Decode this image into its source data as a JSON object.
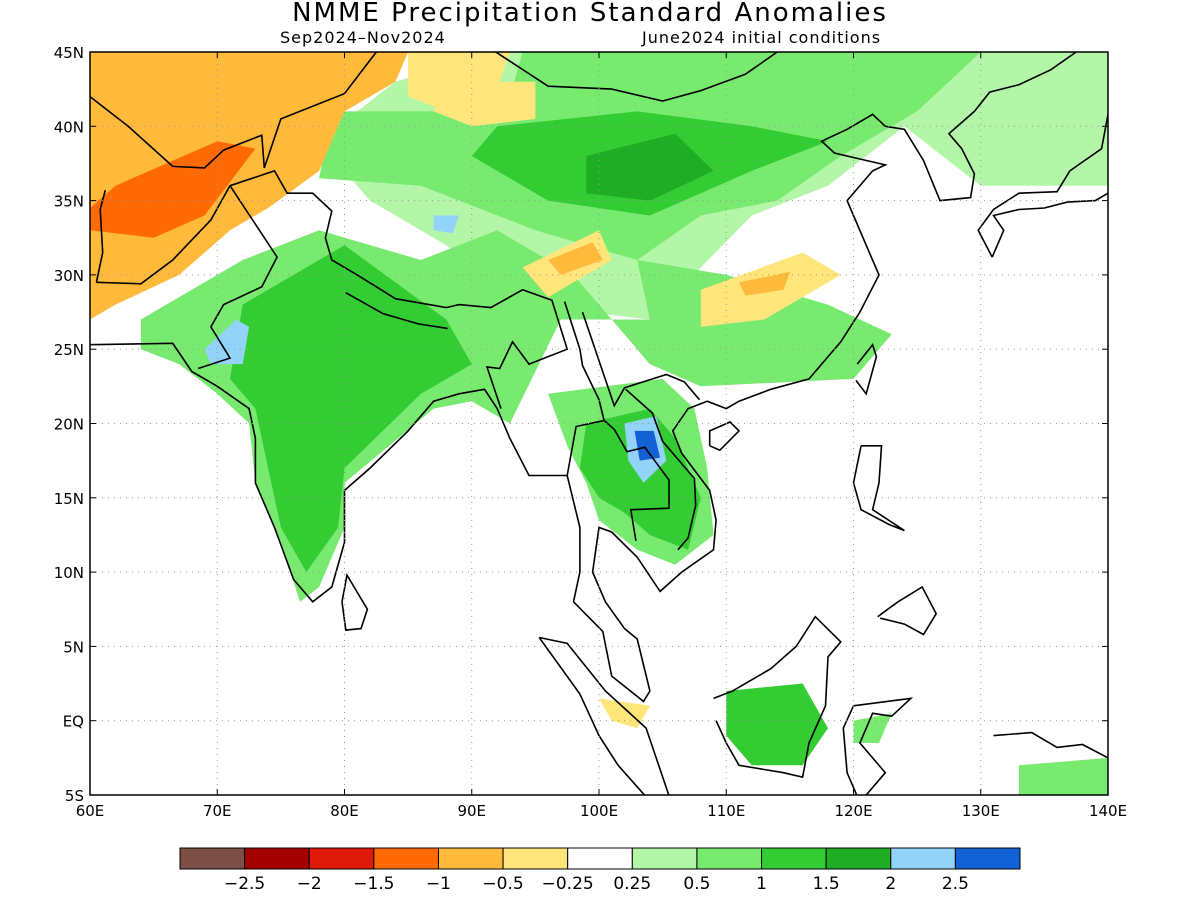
{
  "title": "NMME Precipitation Standard Anomalies",
  "subtitle_period": "Sep2024–Nov2024",
  "subtitle_init": "June2024 initial conditions",
  "map": {
    "lon_range": [
      60,
      140
    ],
    "lat_range": [
      -5,
      45
    ],
    "lon_ticks": [
      "60E",
      "70E",
      "80E",
      "90E",
      "100E",
      "110E",
      "120E",
      "130E",
      "140E"
    ],
    "lat_ticks": [
      "45N",
      "40N",
      "35N",
      "30N",
      "25N",
      "20N",
      "15N",
      "10N",
      "5N",
      "EQ",
      "5S"
    ],
    "grid": "dotted"
  },
  "colorbar": {
    "colors": [
      "#7b4f45",
      "#a40000",
      "#e01a0a",
      "#ff6a05",
      "#ffb93b",
      "#ffe57a",
      "#ffffff",
      "#b3f6a8",
      "#78ea6f",
      "#33cc33",
      "#1fad25",
      "#92d3fa",
      "#1262d6"
    ],
    "labels": [
      "−2.5",
      "−2",
      "−1.5",
      "−1",
      "−0.5",
      "−0.25",
      "0.25",
      "0.5",
      "1",
      "1.5",
      "2",
      "2.5"
    ]
  },
  "colors": {
    "dry_strong": "#ff6a05",
    "dry_mod": "#ffb93b",
    "dry_weak": "#ffe57a",
    "wet_weak": "#b3f6a8",
    "wet_mod": "#78ea6f",
    "wet_strong": "#33cc33",
    "wet_vstrong": "#1fad25",
    "wet_lightblue": "#92d3fa",
    "wet_blue": "#1262d6"
  }
}
